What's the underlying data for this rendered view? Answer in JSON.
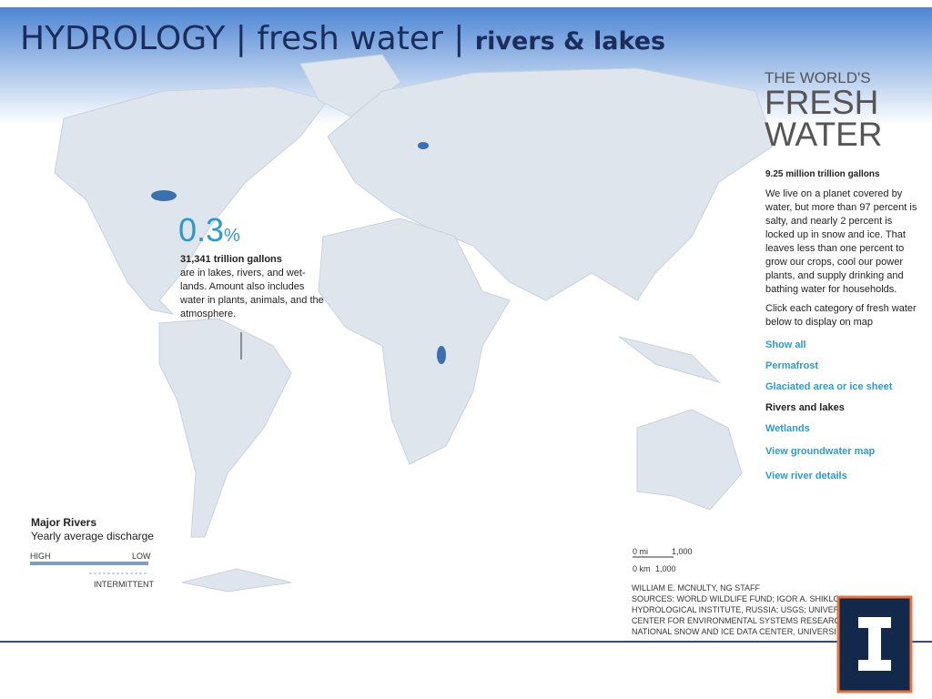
{
  "header": {
    "title": "HYDROLOGY | fresh water | ",
    "title_emphasis": "rivers & lakes"
  },
  "callout": {
    "big_number": "0.3",
    "unit": "%",
    "amount": "31,341 trillion gallons",
    "text": "are in lakes, rivers, and wet-lands. Amount also includes water in plants, animals, and the atmosphere."
  },
  "sidebar": {
    "heading_line1": "THE WORLD'S",
    "heading_line2": "FRESH",
    "heading_line3": "WATER",
    "total": "9.25 million trillion gallons",
    "paragraph": "We live on a planet covered by water, but more than 97 percent is salty, and nearly 2 percent is locked up in snow and ice. That leaves less than one percent to grow our crops, cool our power plants, and supply drinking and bathing water for households.",
    "instruction": "Click each category of fresh water below to display on map",
    "links": [
      "Show all",
      "Permafrost",
      "Glaciated area or ice sheet",
      "Rivers and lakes",
      "Wetlands"
    ],
    "extra_links": [
      "View groundwater map",
      "View river details"
    ]
  },
  "legend": {
    "title": "Major Rivers",
    "subtitle": "Yearly average discharge",
    "high": "HIGH",
    "low": "LOW",
    "intermittent": "INTERMITTENT"
  },
  "scale": {
    "mi_start": "0 mi",
    "mi_end": "1,000",
    "km_start": "0 km",
    "km_end": "1,000"
  },
  "credits": [
    "WILLIAM E. MCNULTY, NG STAFF",
    "SOURCES: WORLD WILDLIFE FUND; IGOR A. SHIKLO",
    "HYDROLOGICAL INSTITUTE, RUSSIA; USGS; UNIVER",
    "CENTER FOR ENVIRONMENTAL SYSTEMS RESEARC",
    "NATIONAL SNOW AND ICE DATA CENTER, UNIVERSI"
  ]
}
